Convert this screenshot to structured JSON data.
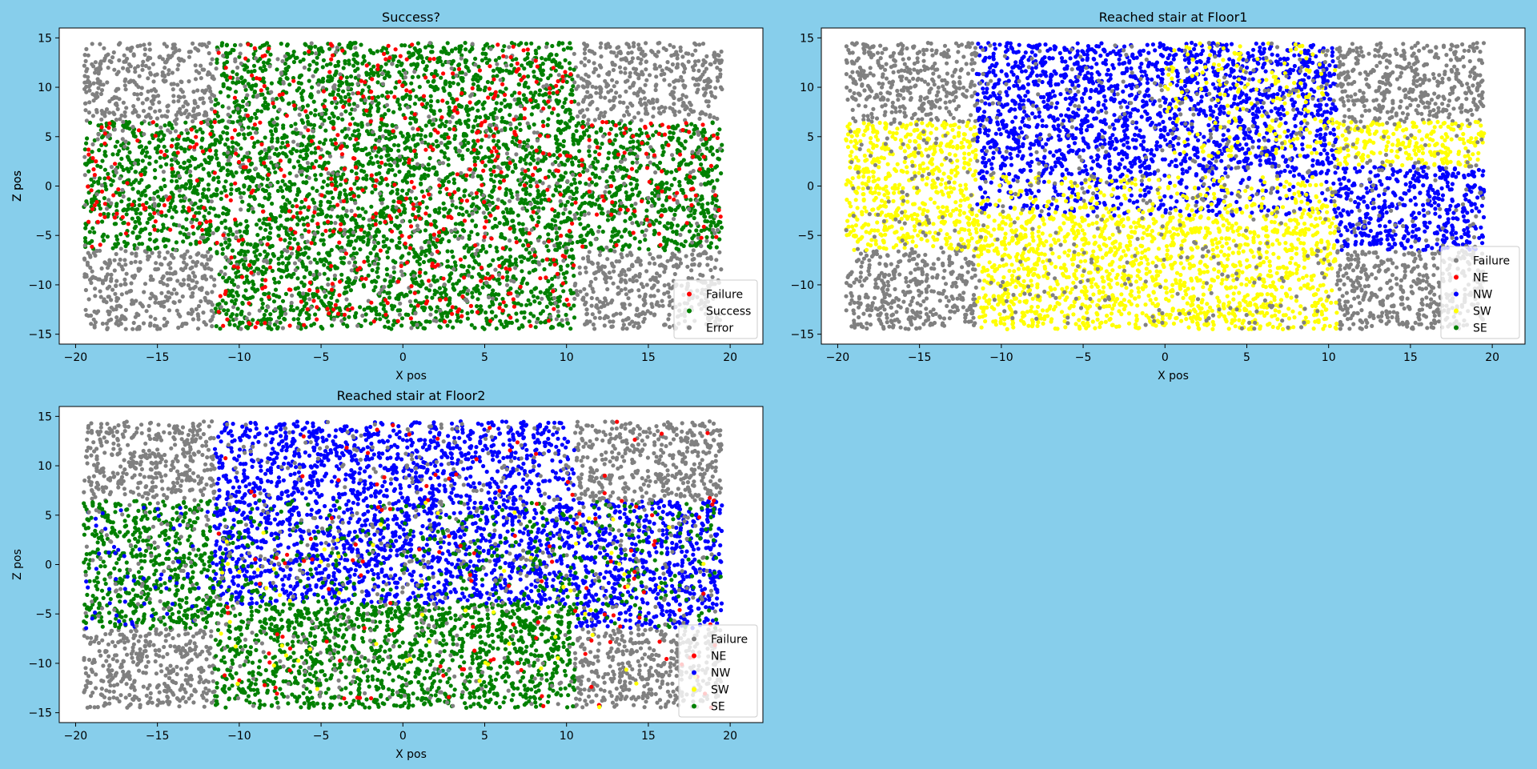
{
  "figure": {
    "background": "#87ceeb"
  },
  "chart_data": [
    {
      "type": "scatter",
      "title": "Success?",
      "xlabel": "X pos",
      "ylabel": "Z pos",
      "xlim": [
        -21,
        22
      ],
      "ylim": [
        -16,
        16
      ],
      "xticks": [
        -20,
        -15,
        -10,
        -5,
        0,
        5,
        10,
        15,
        20
      ],
      "yticks": [
        -15,
        -10,
        -5,
        0,
        5,
        10,
        15
      ],
      "grid": false,
      "legend_placement": "lower-right",
      "legend": [
        {
          "label": "Failure",
          "color": "#ff0000"
        },
        {
          "label": "Success",
          "color": "#008000"
        },
        {
          "label": "Error",
          "color": "#808080"
        }
      ],
      "regions": [
        {
          "name": "Error",
          "color": "#808080",
          "density": 1.0,
          "areas": [
            [
              -19.5,
              -11.5,
              6.5,
              14.5
            ],
            [
              -19.5,
              -11.5,
              -14.5,
              -6.5
            ],
            [
              10.5,
              19.5,
              6.5,
              14.5
            ],
            [
              10.5,
              19.5,
              -14.5,
              -6.5
            ]
          ]
        },
        {
          "name": "Success",
          "color": "#008000",
          "density": 1.0,
          "areas": [
            [
              -11.5,
              10.5,
              -14.5,
              14.5
            ],
            [
              -19.5,
              -11.5,
              -6.5,
              6.5
            ],
            [
              10.5,
              19.5,
              -6.5,
              6.5
            ]
          ]
        },
        {
          "name": "Error",
          "color": "#808080",
          "density": 0.12,
          "areas": [
            [
              -11.5,
              10.5,
              -14.5,
              14.5
            ],
            [
              -19.5,
              -11.5,
              -6.5,
              6.5
            ],
            [
              10.5,
              19.5,
              -6.5,
              6.5
            ]
          ]
        },
        {
          "name": "Failure",
          "color": "#ff0000",
          "density": 0.14,
          "areas": [
            [
              -11.5,
              10.5,
              -14.5,
              14.5
            ],
            [
              -19.5,
              -11.5,
              -6.5,
              6.5
            ],
            [
              10.5,
              19.5,
              -6.5,
              6.5
            ]
          ]
        }
      ]
    },
    {
      "type": "scatter",
      "title": "Reached stair at Floor1",
      "xlabel": "X pos",
      "ylabel": "Z pos",
      "xlim": [
        -21,
        22
      ],
      "ylim": [
        -16,
        16
      ],
      "xticks": [
        -20,
        -15,
        -10,
        -5,
        0,
        5,
        10,
        15,
        20
      ],
      "yticks": [
        -15,
        -10,
        -5,
        0,
        5,
        10,
        15
      ],
      "grid": false,
      "legend_placement": "lower-right",
      "legend": [
        {
          "label": "Failure",
          "color": "#808080"
        },
        {
          "label": "NE",
          "color": "#ff0000"
        },
        {
          "label": "NW",
          "color": "#0000ff"
        },
        {
          "label": "SW",
          "color": "#ffff00"
        },
        {
          "label": "SE",
          "color": "#008000"
        }
      ],
      "regions": [
        {
          "name": "Failure",
          "color": "#808080",
          "density": 1.0,
          "areas": [
            [
              -19.5,
              -11.5,
              6.5,
              14.5
            ],
            [
              -19.5,
              -11.5,
              -14.5,
              -6.5
            ],
            [
              10.5,
              19.5,
              6.5,
              14.5
            ],
            [
              10.5,
              19.5,
              -14.5,
              -6.5
            ]
          ]
        },
        {
          "name": "SW",
          "color": "#ffff00",
          "density": 1.1,
          "areas": [
            [
              -19.5,
              -11.5,
              -6.5,
              6.5
            ],
            [
              -11.5,
              10.5,
              -14.5,
              -3
            ],
            [
              10.5,
              19.5,
              2,
              6.5
            ]
          ]
        },
        {
          "name": "NW",
          "color": "#0000ff",
          "density": 1.1,
          "areas": [
            [
              -11.5,
              10.5,
              1,
              14.5
            ],
            [
              10.5,
              19.5,
              -6.5,
              2
            ]
          ]
        },
        {
          "name": "NW",
          "color": "#0000ff",
          "density": 0.55,
          "areas": [
            [
              -11.5,
              10.5,
              -3,
              1
            ]
          ]
        },
        {
          "name": "SW",
          "color": "#ffff00",
          "density": 0.45,
          "areas": [
            [
              -11.5,
              10.5,
              -3,
              1
            ]
          ]
        },
        {
          "name": "SW",
          "color": "#ffff00",
          "density": 0.3,
          "areas": [
            [
              0,
              10.5,
              3,
              14.5
            ]
          ]
        },
        {
          "name": "Failure",
          "color": "#808080",
          "density": 0.12,
          "areas": [
            [
              -19.5,
              19.5,
              -14.5,
              14.5
            ]
          ]
        },
        {
          "name": "NE",
          "color": "#ff0000",
          "density": 0.004,
          "areas": [
            [
              10.5,
              15.5,
              8.5,
              10.5
            ]
          ]
        },
        {
          "name": "SE",
          "color": "#008000",
          "density": 0.003,
          "areas": [
            [
              10.5,
              12,
              -14.5,
              -13
            ]
          ]
        }
      ]
    },
    {
      "type": "scatter",
      "title": "Reached stair at Floor2",
      "xlabel": "X pos",
      "ylabel": "Z pos",
      "xlim": [
        -21,
        22
      ],
      "ylim": [
        -16,
        16
      ],
      "xticks": [
        -20,
        -15,
        -10,
        -5,
        0,
        5,
        10,
        15,
        20
      ],
      "yticks": [
        -15,
        -10,
        -5,
        0,
        5,
        10,
        15
      ],
      "grid": false,
      "legend_placement": "lower-right",
      "legend": [
        {
          "label": "Failure",
          "color": "#808080"
        },
        {
          "label": "NE",
          "color": "#ff0000"
        },
        {
          "label": "NW",
          "color": "#0000ff"
        },
        {
          "label": "SW",
          "color": "#ffff00"
        },
        {
          "label": "SE",
          "color": "#008000"
        }
      ],
      "regions": [
        {
          "name": "Failure",
          "color": "#808080",
          "density": 1.0,
          "areas": [
            [
              -19.5,
              -11.5,
              6.5,
              14.5
            ],
            [
              -19.5,
              -11.5,
              -14.5,
              -6.5
            ],
            [
              10.5,
              19.5,
              6.5,
              14.5
            ],
            [
              10.5,
              19.5,
              -14.5,
              -6.5
            ]
          ]
        },
        {
          "name": "SE",
          "color": "#008000",
          "density": 1.0,
          "areas": [
            [
              -11.5,
              10.5,
              -14.5,
              -4
            ],
            [
              -19.5,
              -11.5,
              -6.5,
              6.5
            ]
          ]
        },
        {
          "name": "NW",
          "color": "#0000ff",
          "density": 1.0,
          "areas": [
            [
              -11.5,
              10.5,
              -4,
              14.5
            ],
            [
              10.5,
              19.5,
              -6.5,
              6.5
            ]
          ]
        },
        {
          "name": "SE",
          "color": "#008000",
          "density": 0.25,
          "areas": [
            [
              -11.5,
              19.5,
              -6.5,
              6.5
            ]
          ]
        },
        {
          "name": "NW",
          "color": "#0000ff",
          "density": 0.12,
          "areas": [
            [
              -19.5,
              -11.5,
              -6.5,
              6.5
            ]
          ]
        },
        {
          "name": "Failure",
          "color": "#808080",
          "density": 0.12,
          "areas": [
            [
              -19.5,
              19.5,
              -14.5,
              14.5
            ]
          ]
        },
        {
          "name": "NE",
          "color": "#ff0000",
          "density": 0.03,
          "areas": [
            [
              -11.5,
              19.5,
              -14.5,
              14.5
            ]
          ]
        },
        {
          "name": "SW",
          "color": "#ffff00",
          "density": 0.02,
          "areas": [
            [
              -11.5,
              19.5,
              -14.5,
              6.5
            ]
          ]
        }
      ]
    }
  ]
}
